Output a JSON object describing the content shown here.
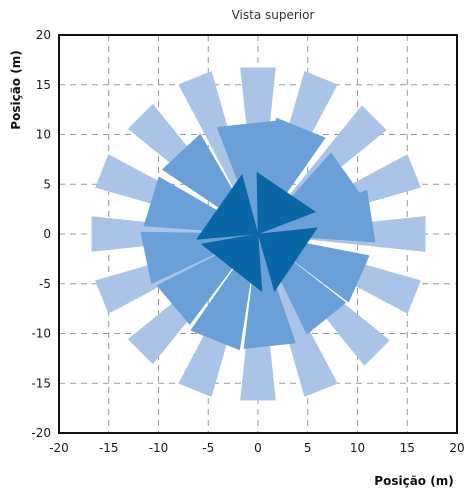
{
  "chart_data": {
    "type": "polar-fan",
    "title": "Vista superior",
    "xlabel": "Posição (m)",
    "ylabel": "Posição (m)",
    "xlim": [
      -20,
      20
    ],
    "ylim": [
      -20,
      20
    ],
    "xticks": [
      -20,
      -15,
      -10,
      -5,
      0,
      5,
      10,
      15,
      20
    ],
    "yticks": [
      -20,
      -15,
      -10,
      -5,
      0,
      5,
      10,
      15,
      20
    ],
    "xtick_labels": [
      "-20",
      "-15",
      "-10",
      "-5",
      "0",
      "5",
      "10",
      "15",
      "20"
    ],
    "ytick_labels": [
      "-20",
      "-15",
      "-10",
      "-5",
      "0",
      "5",
      "10",
      "15",
      "20"
    ],
    "grid": true,
    "grid_style": "dashed",
    "colors": {
      "outer": "#aac4e8",
      "middle": "#6a9fd8",
      "inner": "#0a67a5",
      "axes": "#111111",
      "grid": "#999999"
    },
    "series": [
      {
        "ring": "outer",
        "wedges": [
          {
            "angle_deg": 90,
            "half_width_deg": 6,
            "r_inner": 0,
            "r_outer": 16.8
          },
          {
            "angle_deg": 68,
            "half_width_deg": 6,
            "r_inner": 0,
            "r_outer": 17.0
          },
          {
            "angle_deg": 45,
            "half_width_deg": 6,
            "r_inner": 0,
            "r_outer": 16.6
          },
          {
            "angle_deg": 22,
            "half_width_deg": 6,
            "r_inner": 0,
            "r_outer": 17.0
          },
          {
            "angle_deg": 0,
            "half_width_deg": 6,
            "r_inner": 0,
            "r_outer": 16.9
          },
          {
            "angle_deg": -22,
            "half_width_deg": 6,
            "r_inner": 0,
            "r_outer": 17.0
          },
          {
            "angle_deg": -45,
            "half_width_deg": 6,
            "r_inner": 0,
            "r_outer": 17.0
          },
          {
            "angle_deg": -68,
            "half_width_deg": 6,
            "r_inner": 0,
            "r_outer": 17.0
          },
          {
            "angle_deg": -90,
            "half_width_deg": 6,
            "r_inner": 0,
            "r_outer": 16.8
          },
          {
            "angle_deg": -112,
            "half_width_deg": 6,
            "r_inner": 0,
            "r_outer": 17.0
          },
          {
            "angle_deg": -135,
            "half_width_deg": 6,
            "r_inner": 0,
            "r_outer": 16.8
          },
          {
            "angle_deg": -158,
            "half_width_deg": 6,
            "r_inner": 0,
            "r_outer": 17.0
          },
          {
            "angle_deg": 180,
            "half_width_deg": 6,
            "r_inner": 0,
            "r_outer": 16.8
          },
          {
            "angle_deg": 158,
            "half_width_deg": 6,
            "r_inner": 0,
            "r_outer": 17.0
          },
          {
            "angle_deg": 135,
            "half_width_deg": 6,
            "r_inner": 0,
            "r_outer": 16.8
          },
          {
            "angle_deg": 112,
            "half_width_deg": 6,
            "r_inner": 0,
            "r_outer": 17.0
          }
        ]
      },
      {
        "ring": "middle",
        "wedges": [
          {
            "angle_deg": 96,
            "half_width_deg": 15,
            "r_inner": 0,
            "r_outer": 11.5
          },
          {
            "angle_deg": 68,
            "half_width_deg": 13,
            "r_inner": 0,
            "r_outer": 11.8
          },
          {
            "angle_deg": 35,
            "half_width_deg": 13,
            "r_inner": 0,
            "r_outer": 11.0
          },
          {
            "angle_deg": 9,
            "half_width_deg": 13,
            "r_inner": 0,
            "r_outer": 11.8
          },
          {
            "angle_deg": -24,
            "half_width_deg": 13,
            "r_inner": 0,
            "r_outer": 11.4
          },
          {
            "angle_deg": -51,
            "half_width_deg": 13,
            "r_inner": 0,
            "r_outer": 11.2
          },
          {
            "angle_deg": -84,
            "half_width_deg": 13,
            "r_inner": 0,
            "r_outer": 11.6
          },
          {
            "angle_deg": -112,
            "half_width_deg": 13,
            "r_inner": 0,
            "r_outer": 11.8
          },
          {
            "angle_deg": -140,
            "half_width_deg": 13,
            "r_inner": 0,
            "r_outer": 11.4
          },
          {
            "angle_deg": -168,
            "half_width_deg": 13,
            "r_inner": 0,
            "r_outer": 11.8
          },
          {
            "angle_deg": 163,
            "half_width_deg": 13,
            "r_inner": 0,
            "r_outer": 11.5
          },
          {
            "angle_deg": 133,
            "half_width_deg": 13,
            "r_inner": 0,
            "r_outer": 11.6
          }
        ]
      },
      {
        "ring": "inner",
        "wedges": [
          {
            "angle_deg": 56,
            "half_width_deg": 35,
            "r_inner": 0,
            "r_outer": 6.2
          },
          {
            "angle_deg": -34,
            "half_width_deg": 40,
            "r_inner": 0,
            "r_outer": 6.0
          },
          {
            "angle_deg": -128,
            "half_width_deg": 42,
            "r_inner": 0,
            "r_outer": 5.8
          },
          {
            "angle_deg": 145,
            "half_width_deg": 40,
            "r_inner": 0,
            "r_outer": 6.2
          }
        ]
      }
    ]
  }
}
